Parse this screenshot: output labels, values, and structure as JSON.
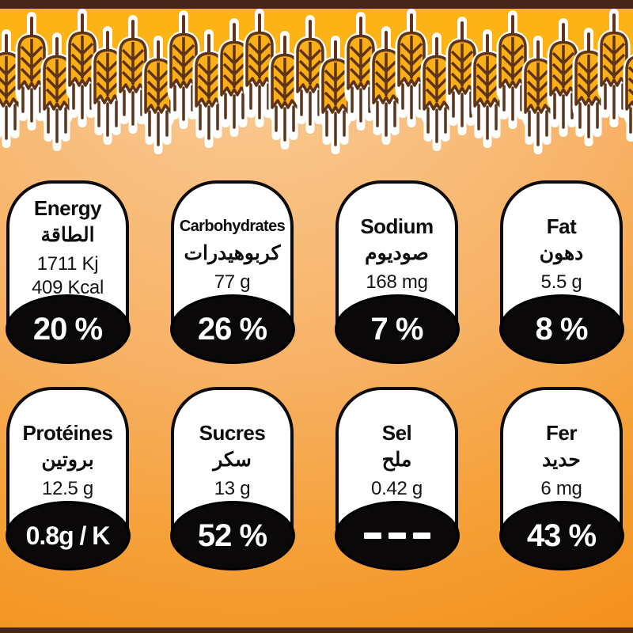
{
  "panel": {
    "type": "nutrition-facts-packaging",
    "badges": [
      {
        "id": "energy",
        "title_en": "Energy",
        "title_ar": "الطاقة",
        "values": [
          "1711 Kj",
          "409 Kcal"
        ],
        "daily_value": "20 %"
      },
      {
        "id": "carbohydrates",
        "title_en": "Carbohydrates",
        "title_ar": "كربوهيدرات",
        "values": [
          "77 g"
        ],
        "daily_value": "26 %"
      },
      {
        "id": "sodium",
        "title_en": "Sodium",
        "title_ar": "صوديوم",
        "values": [
          "168 mg"
        ],
        "daily_value": "7 %"
      },
      {
        "id": "fat",
        "title_en": "Fat",
        "title_ar": "دهون",
        "values": [
          "5.5 g"
        ],
        "daily_value": "8 %"
      },
      {
        "id": "proteins",
        "title_en": "Protéines",
        "title_ar": "بروتين",
        "values": [
          "12.5 g"
        ],
        "daily_value": "0.8g / K"
      },
      {
        "id": "sugars",
        "title_en": "Sucres",
        "title_ar": "سكر",
        "values": [
          "13 g"
        ],
        "daily_value": "52 %"
      },
      {
        "id": "salt",
        "title_en": "Sel",
        "title_ar": "ملح",
        "values": [
          "0.42 g"
        ],
        "daily_value": "---"
      },
      {
        "id": "iron",
        "title_en": "Fer",
        "title_ar": "حديد",
        "values": [
          "6 mg"
        ],
        "daily_value": "43 %"
      }
    ]
  },
  "decor": {
    "wheat_icon": "wheat-ear-icon",
    "colors": {
      "border_bar": "#46241A",
      "wheat_band": "#FCB316",
      "wheat_fill": "#FBAE17",
      "wheat_line": "#5D3419",
      "badge_outline": "#0D0B0C",
      "oval_fill": "#0A0809",
      "bg_top": "#FACE9C",
      "bg_bottom": "#F28E18",
      "text_dark": "#0D0B0C",
      "text_light": "#FFFFFF"
    }
  }
}
